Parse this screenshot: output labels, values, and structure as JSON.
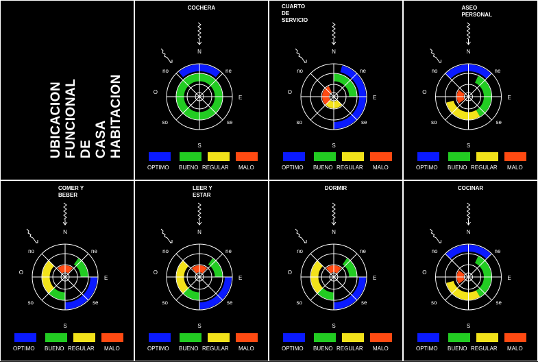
{
  "main_title": [
    "UBICACION",
    "FUNCIONAL",
    "DE",
    "CASA",
    "HABITACION"
  ],
  "compass": {
    "n": "N",
    "s": "S",
    "e": "E",
    "o": "O",
    "no": "no",
    "ne": "ne",
    "so": "so",
    "se": "se"
  },
  "legend": [
    {
      "label": "OPTIMO",
      "color": "#0a1aff"
    },
    {
      "label": "BUENO",
      "color": "#22cc22"
    },
    {
      "label": "REGULAR",
      "color": "#f2e21a"
    },
    {
      "label": "MALO",
      "color": "#ff4a12"
    }
  ],
  "panels": [
    {
      "title": "COCHERA",
      "rings": [
        {
          "ring": 3,
          "start": -40,
          "end": 40,
          "level": 0
        },
        {
          "ring": 2,
          "start": 0,
          "end": 360,
          "level": 1
        }
      ]
    },
    {
      "title": "CUARTO\nDE\nSERVICIO",
      "rings": [
        {
          "ring": 3,
          "start": 15,
          "end": 180,
          "level": 0
        },
        {
          "ring": 2,
          "start": 0,
          "end": 90,
          "level": 1
        },
        {
          "ring": 1,
          "start": 135,
          "end": 225,
          "level": 2
        },
        {
          "ring": 1,
          "start": 225,
          "end": 335,
          "level": 3
        }
      ]
    },
    {
      "title": "ASEO\nPERSONAL",
      "rings": [
        {
          "ring": 3,
          "start": -45,
          "end": 45,
          "level": 0
        },
        {
          "ring": 2,
          "start": 25,
          "end": 150,
          "level": 1
        },
        {
          "ring": 2,
          "start": 150,
          "end": 255,
          "level": 2
        },
        {
          "ring": 1,
          "start": 235,
          "end": 305,
          "level": 3
        }
      ]
    },
    {
      "title": "COMER Y\nBEBER",
      "rings": [
        {
          "ring": 3,
          "start": 90,
          "end": 180,
          "level": 0
        },
        {
          "ring": 2,
          "start": 35,
          "end": 90,
          "level": 1
        },
        {
          "ring": 2,
          "start": 180,
          "end": 225,
          "level": 1
        },
        {
          "ring": 2,
          "start": 225,
          "end": 315,
          "level": 2
        },
        {
          "ring": 1,
          "start": -40,
          "end": 40,
          "level": 3
        }
      ]
    },
    {
      "title": "LEER Y\nESTAR",
      "rings": [
        {
          "ring": 3,
          "start": 90,
          "end": 180,
          "level": 0
        },
        {
          "ring": 2,
          "start": 35,
          "end": 90,
          "level": 1
        },
        {
          "ring": 2,
          "start": 180,
          "end": 225,
          "level": 1
        },
        {
          "ring": 2,
          "start": 225,
          "end": 315,
          "level": 2
        },
        {
          "ring": 1,
          "start": -40,
          "end": 40,
          "level": 3
        }
      ]
    },
    {
      "title": "DORMIR",
      "rings": [
        {
          "ring": 3,
          "start": 90,
          "end": 180,
          "level": 0
        },
        {
          "ring": 2,
          "start": 35,
          "end": 90,
          "level": 1
        },
        {
          "ring": 2,
          "start": 180,
          "end": 225,
          "level": 1
        },
        {
          "ring": 2,
          "start": 225,
          "end": 315,
          "level": 2
        },
        {
          "ring": 1,
          "start": -40,
          "end": 40,
          "level": 3
        }
      ]
    },
    {
      "title": "COCINAR",
      "rings": [
        {
          "ring": 3,
          "start": -45,
          "end": 45,
          "level": 0
        },
        {
          "ring": 2,
          "start": 25,
          "end": 150,
          "level": 1
        },
        {
          "ring": 2,
          "start": 150,
          "end": 255,
          "level": 2
        },
        {
          "ring": 1,
          "start": 235,
          "end": 305,
          "level": 3
        }
      ]
    }
  ]
}
